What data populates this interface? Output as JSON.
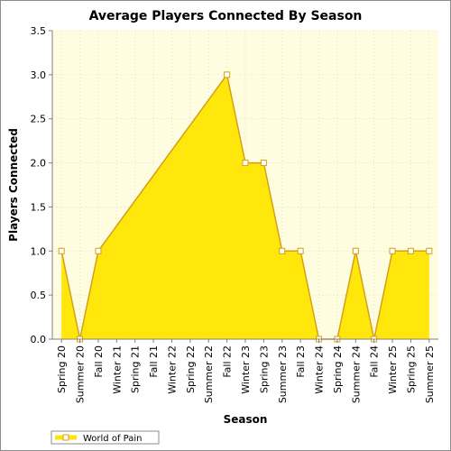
{
  "chart_data": {
    "type": "area",
    "title": "Average Players Connected By Season",
    "xlabel": "Season",
    "ylabel": "Players Connected",
    "categories": [
      "Spring 20",
      "Summer 20",
      "Fall 20",
      "Winter 21",
      "Spring 21",
      "Fall 21",
      "Winter 22",
      "Spring 22",
      "Summer 22",
      "Fall 22",
      "Winter 23",
      "Spring 23",
      "Summer 23",
      "Fall 23",
      "Winter 24",
      "Spring 24",
      "Summer 24",
      "Fall 24",
      "Winter 25",
      "Spring 25",
      "Summer 25"
    ],
    "series": [
      {
        "name": "World of Pain",
        "values": [
          1.0,
          0.0,
          1.0,
          null,
          null,
          null,
          null,
          null,
          null,
          3.0,
          2.0,
          2.0,
          1.0,
          1.0,
          0.0,
          0.0,
          1.0,
          0.0,
          1.0,
          1.0,
          1.0
        ]
      }
    ],
    "ylim": [
      0,
      3.5
    ],
    "yticks": [
      "0.0",
      "0.5",
      "1.0",
      "1.5",
      "2.0",
      "2.5",
      "3.0",
      "3.5"
    ],
    "grid": true,
    "legend_position": "bottom-left",
    "colors": {
      "plot_background": "#fffde0",
      "fill": "#ffe600",
      "line": "#d4a017",
      "marker_fill": "#ffffff",
      "grid": "#d8d8c0"
    }
  }
}
